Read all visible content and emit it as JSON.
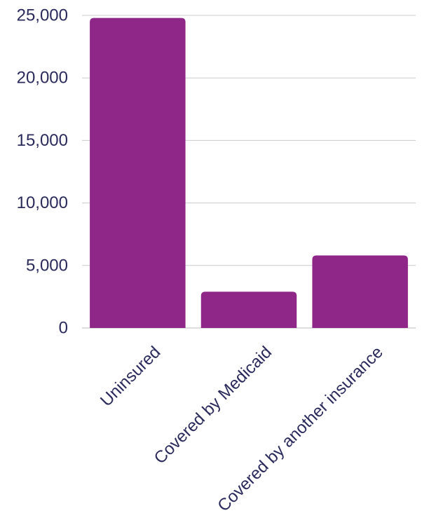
{
  "chart_data": {
    "type": "bar",
    "categories": [
      "Uninsured",
      "Covered by Medicaid",
      "Covered by another insurance"
    ],
    "values": [
      24800,
      2900,
      5800
    ],
    "ylim": [
      0,
      25000
    ],
    "yticks": [
      0,
      5000,
      10000,
      15000,
      20000,
      25000
    ],
    "ytick_labels": [
      "0",
      "5,000",
      "10,000",
      "15,000",
      "20,000",
      "25,000"
    ],
    "grid": true,
    "bar_color": "#8e2788",
    "text_color": "#2b2a5c"
  }
}
